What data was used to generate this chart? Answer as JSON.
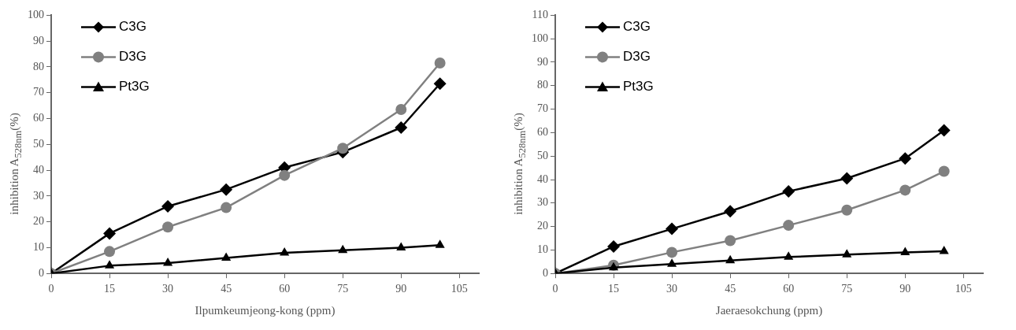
{
  "chart_data": [
    {
      "type": "line",
      "xlabel": "Ilpumkeumjeong-kong (ppm)",
      "ylabel": "inhibition A$_{528nm}$(%)",
      "x": [
        0,
        15,
        30,
        45,
        60,
        75,
        90,
        100
      ],
      "xlim": [
        0,
        110
      ],
      "xticks": [
        0,
        15,
        30,
        45,
        60,
        75,
        90,
        105
      ],
      "ylim": [
        0,
        100
      ],
      "yticks": [
        0,
        10,
        20,
        30,
        40,
        50,
        60,
        70,
        80,
        90,
        100
      ],
      "grid": false,
      "legend": "top left",
      "series": [
        {
          "name": "C3G",
          "color": "#000000",
          "marker": "diamond",
          "values": [
            0,
            15.5,
            26,
            32.5,
            41,
            47,
            56.5,
            73.5
          ]
        },
        {
          "name": "D3G",
          "color": "#808080",
          "marker": "circle",
          "values": [
            0,
            8.5,
            18,
            25.5,
            38,
            48.5,
            63.5,
            81.5
          ]
        },
        {
          "name": "Pt3G",
          "color": "#000000",
          "marker": "triangle",
          "values": [
            0,
            3,
            4,
            6,
            8,
            9,
            10,
            11
          ]
        }
      ]
    },
    {
      "type": "line",
      "xlabel": "Jaeraesokchung (ppm)",
      "ylabel": "inhibition A$_{528nm}$(%)",
      "x": [
        0,
        15,
        30,
        45,
        60,
        75,
        90,
        100
      ],
      "xlim": [
        0,
        110
      ],
      "xticks": [
        0,
        15,
        30,
        45,
        60,
        75,
        90,
        105
      ],
      "ylim": [
        0,
        110
      ],
      "yticks": [
        0,
        10,
        20,
        30,
        40,
        50,
        60,
        70,
        80,
        90,
        100,
        110
      ],
      "grid": false,
      "legend": "top left",
      "series": [
        {
          "name": "C3G",
          "color": "#000000",
          "marker": "diamond",
          "values": [
            0,
            11.5,
            19,
            26.5,
            35,
            40.5,
            49,
            61
          ]
        },
        {
          "name": "D3G",
          "color": "#808080",
          "marker": "circle",
          "values": [
            0,
            3.5,
            9,
            14,
            20.5,
            27,
            35.5,
            43.5
          ]
        },
        {
          "name": "Pt3G",
          "color": "#000000",
          "marker": "triangle",
          "values": [
            0,
            2.5,
            4,
            5.5,
            7,
            8,
            9,
            9.5
          ]
        }
      ]
    }
  ]
}
